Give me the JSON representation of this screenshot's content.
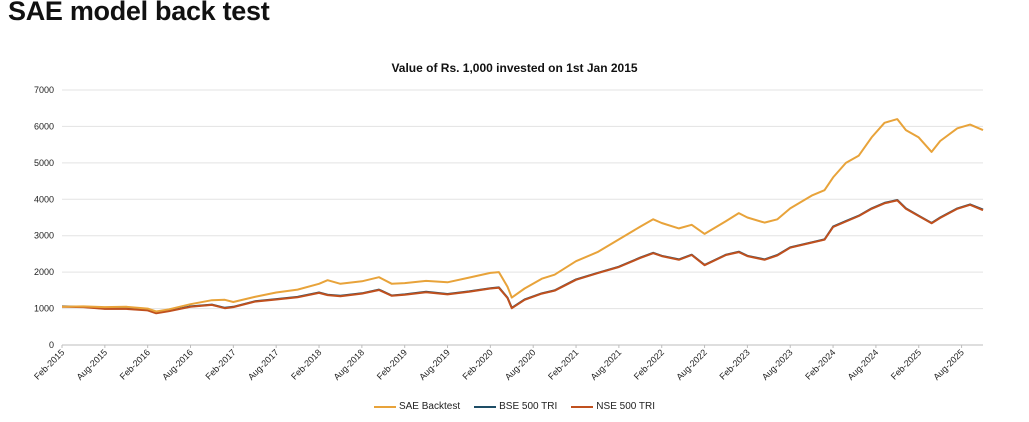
{
  "page": {
    "title": "SAE model back test"
  },
  "chart_data": {
    "type": "line",
    "title": "Value of Rs. 1,000 invested on 1st Jan 2015",
    "xlabel": "",
    "ylabel": "",
    "ylim": [
      0,
      7000
    ],
    "yticks": [
      0,
      1000,
      2000,
      3000,
      4000,
      5000,
      6000,
      7000
    ],
    "xlim": [
      2015.0,
      2025.75
    ],
    "categories": [
      "Feb-2015",
      "Aug-2015",
      "Feb-2016",
      "Aug-2016",
      "Feb-2017",
      "Aug-2017",
      "Feb-2018",
      "Aug-2018",
      "Feb-2019",
      "Aug-2019",
      "Feb-2020",
      "Aug-2020",
      "Feb-2021",
      "Aug-2021",
      "Feb-2022",
      "Aug-2022",
      "Feb-2023",
      "Aug-2023",
      "Feb-2024",
      "Aug-2024",
      "Feb-2025",
      "Aug-2025"
    ],
    "grid": true,
    "legend_position": "bottom",
    "series": [
      {
        "name": "SAE Backtest",
        "color": "#e8a33a",
        "points": [
          [
            2015.0,
            1050
          ],
          [
            2015.25,
            1060
          ],
          [
            2015.5,
            1040
          ],
          [
            2015.75,
            1050
          ],
          [
            2016.0,
            1000
          ],
          [
            2016.1,
            920
          ],
          [
            2016.25,
            980
          ],
          [
            2016.5,
            1120
          ],
          [
            2016.75,
            1230
          ],
          [
            2016.9,
            1240
          ],
          [
            2017.0,
            1180
          ],
          [
            2017.25,
            1320
          ],
          [
            2017.5,
            1440
          ],
          [
            2017.75,
            1520
          ],
          [
            2018.0,
            1680
          ],
          [
            2018.1,
            1780
          ],
          [
            2018.25,
            1680
          ],
          [
            2018.5,
            1750
          ],
          [
            2018.7,
            1860
          ],
          [
            2018.85,
            1680
          ],
          [
            2019.0,
            1700
          ],
          [
            2019.25,
            1760
          ],
          [
            2019.5,
            1720
          ],
          [
            2019.75,
            1850
          ],
          [
            2020.0,
            1980
          ],
          [
            2020.1,
            2000
          ],
          [
            2020.2,
            1600
          ],
          [
            2020.25,
            1300
          ],
          [
            2020.4,
            1550
          ],
          [
            2020.6,
            1820
          ],
          [
            2020.75,
            1930
          ],
          [
            2021.0,
            2300
          ],
          [
            2021.25,
            2550
          ],
          [
            2021.5,
            2900
          ],
          [
            2021.75,
            3250
          ],
          [
            2021.9,
            3450
          ],
          [
            2022.0,
            3350
          ],
          [
            2022.2,
            3200
          ],
          [
            2022.35,
            3300
          ],
          [
            2022.5,
            3050
          ],
          [
            2022.75,
            3400
          ],
          [
            2022.9,
            3620
          ],
          [
            2023.0,
            3500
          ],
          [
            2023.2,
            3360
          ],
          [
            2023.35,
            3450
          ],
          [
            2023.5,
            3750
          ],
          [
            2023.75,
            4100
          ],
          [
            2023.9,
            4250
          ],
          [
            2024.0,
            4600
          ],
          [
            2024.15,
            5000
          ],
          [
            2024.3,
            5200
          ],
          [
            2024.45,
            5700
          ],
          [
            2024.6,
            6100
          ],
          [
            2024.75,
            6200
          ],
          [
            2024.85,
            5900
          ],
          [
            2025.0,
            5700
          ],
          [
            2025.15,
            5300
          ],
          [
            2025.25,
            5600
          ],
          [
            2025.45,
            5950
          ],
          [
            2025.6,
            6050
          ],
          [
            2025.75,
            5900
          ]
        ]
      },
      {
        "name": "BSE 500 TRI",
        "color": "#1e4d66",
        "points": [
          [
            2015.0,
            1060
          ],
          [
            2015.25,
            1050
          ],
          [
            2015.5,
            1000
          ],
          [
            2015.75,
            1000
          ],
          [
            2016.0,
            960
          ],
          [
            2016.1,
            880
          ],
          [
            2016.25,
            940
          ],
          [
            2016.5,
            1060
          ],
          [
            2016.75,
            1110
          ],
          [
            2016.9,
            1020
          ],
          [
            2017.0,
            1050
          ],
          [
            2017.25,
            1200
          ],
          [
            2017.5,
            1260
          ],
          [
            2017.75,
            1320
          ],
          [
            2018.0,
            1440
          ],
          [
            2018.1,
            1380
          ],
          [
            2018.25,
            1350
          ],
          [
            2018.5,
            1420
          ],
          [
            2018.7,
            1520
          ],
          [
            2018.85,
            1360
          ],
          [
            2019.0,
            1390
          ],
          [
            2019.25,
            1460
          ],
          [
            2019.5,
            1400
          ],
          [
            2019.75,
            1470
          ],
          [
            2020.0,
            1560
          ],
          [
            2020.1,
            1580
          ],
          [
            2020.2,
            1300
          ],
          [
            2020.25,
            1020
          ],
          [
            2020.4,
            1250
          ],
          [
            2020.6,
            1420
          ],
          [
            2020.75,
            1500
          ],
          [
            2021.0,
            1800
          ],
          [
            2021.25,
            1980
          ],
          [
            2021.5,
            2150
          ],
          [
            2021.75,
            2400
          ],
          [
            2021.9,
            2530
          ],
          [
            2022.0,
            2450
          ],
          [
            2022.2,
            2350
          ],
          [
            2022.35,
            2480
          ],
          [
            2022.5,
            2200
          ],
          [
            2022.75,
            2480
          ],
          [
            2022.9,
            2560
          ],
          [
            2023.0,
            2450
          ],
          [
            2023.2,
            2350
          ],
          [
            2023.35,
            2470
          ],
          [
            2023.5,
            2680
          ],
          [
            2023.75,
            2820
          ],
          [
            2023.9,
            2900
          ],
          [
            2024.0,
            3250
          ],
          [
            2024.15,
            3400
          ],
          [
            2024.3,
            3550
          ],
          [
            2024.45,
            3750
          ],
          [
            2024.6,
            3900
          ],
          [
            2024.75,
            3980
          ],
          [
            2024.85,
            3750
          ],
          [
            2025.0,
            3550
          ],
          [
            2025.15,
            3350
          ],
          [
            2025.25,
            3500
          ],
          [
            2025.45,
            3750
          ],
          [
            2025.6,
            3860
          ],
          [
            2025.75,
            3720
          ]
        ]
      },
      {
        "name": "NSE 500 TRI",
        "color": "#c0501e",
        "points": [
          [
            2015.0,
            1050
          ],
          [
            2015.25,
            1040
          ],
          [
            2015.5,
            990
          ],
          [
            2015.75,
            990
          ],
          [
            2016.0,
            950
          ],
          [
            2016.1,
            870
          ],
          [
            2016.25,
            930
          ],
          [
            2016.5,
            1050
          ],
          [
            2016.75,
            1100
          ],
          [
            2016.9,
            1010
          ],
          [
            2017.0,
            1040
          ],
          [
            2017.25,
            1190
          ],
          [
            2017.5,
            1250
          ],
          [
            2017.75,
            1310
          ],
          [
            2018.0,
            1430
          ],
          [
            2018.1,
            1370
          ],
          [
            2018.25,
            1340
          ],
          [
            2018.5,
            1410
          ],
          [
            2018.7,
            1510
          ],
          [
            2018.85,
            1350
          ],
          [
            2019.0,
            1380
          ],
          [
            2019.25,
            1450
          ],
          [
            2019.5,
            1390
          ],
          [
            2019.75,
            1460
          ],
          [
            2020.0,
            1550
          ],
          [
            2020.1,
            1570
          ],
          [
            2020.2,
            1290
          ],
          [
            2020.25,
            1010
          ],
          [
            2020.4,
            1240
          ],
          [
            2020.6,
            1410
          ],
          [
            2020.75,
            1490
          ],
          [
            2021.0,
            1790
          ],
          [
            2021.25,
            1970
          ],
          [
            2021.5,
            2140
          ],
          [
            2021.75,
            2390
          ],
          [
            2021.9,
            2520
          ],
          [
            2022.0,
            2440
          ],
          [
            2022.2,
            2340
          ],
          [
            2022.35,
            2470
          ],
          [
            2022.5,
            2190
          ],
          [
            2022.75,
            2470
          ],
          [
            2022.9,
            2550
          ],
          [
            2023.0,
            2440
          ],
          [
            2023.2,
            2340
          ],
          [
            2023.35,
            2460
          ],
          [
            2023.5,
            2670
          ],
          [
            2023.75,
            2810
          ],
          [
            2023.9,
            2890
          ],
          [
            2024.0,
            3240
          ],
          [
            2024.15,
            3390
          ],
          [
            2024.3,
            3540
          ],
          [
            2024.45,
            3740
          ],
          [
            2024.6,
            3890
          ],
          [
            2024.75,
            3970
          ],
          [
            2024.85,
            3740
          ],
          [
            2025.0,
            3540
          ],
          [
            2025.15,
            3340
          ],
          [
            2025.25,
            3490
          ],
          [
            2025.45,
            3740
          ],
          [
            2025.6,
            3850
          ],
          [
            2025.75,
            3700
          ]
        ]
      }
    ]
  }
}
